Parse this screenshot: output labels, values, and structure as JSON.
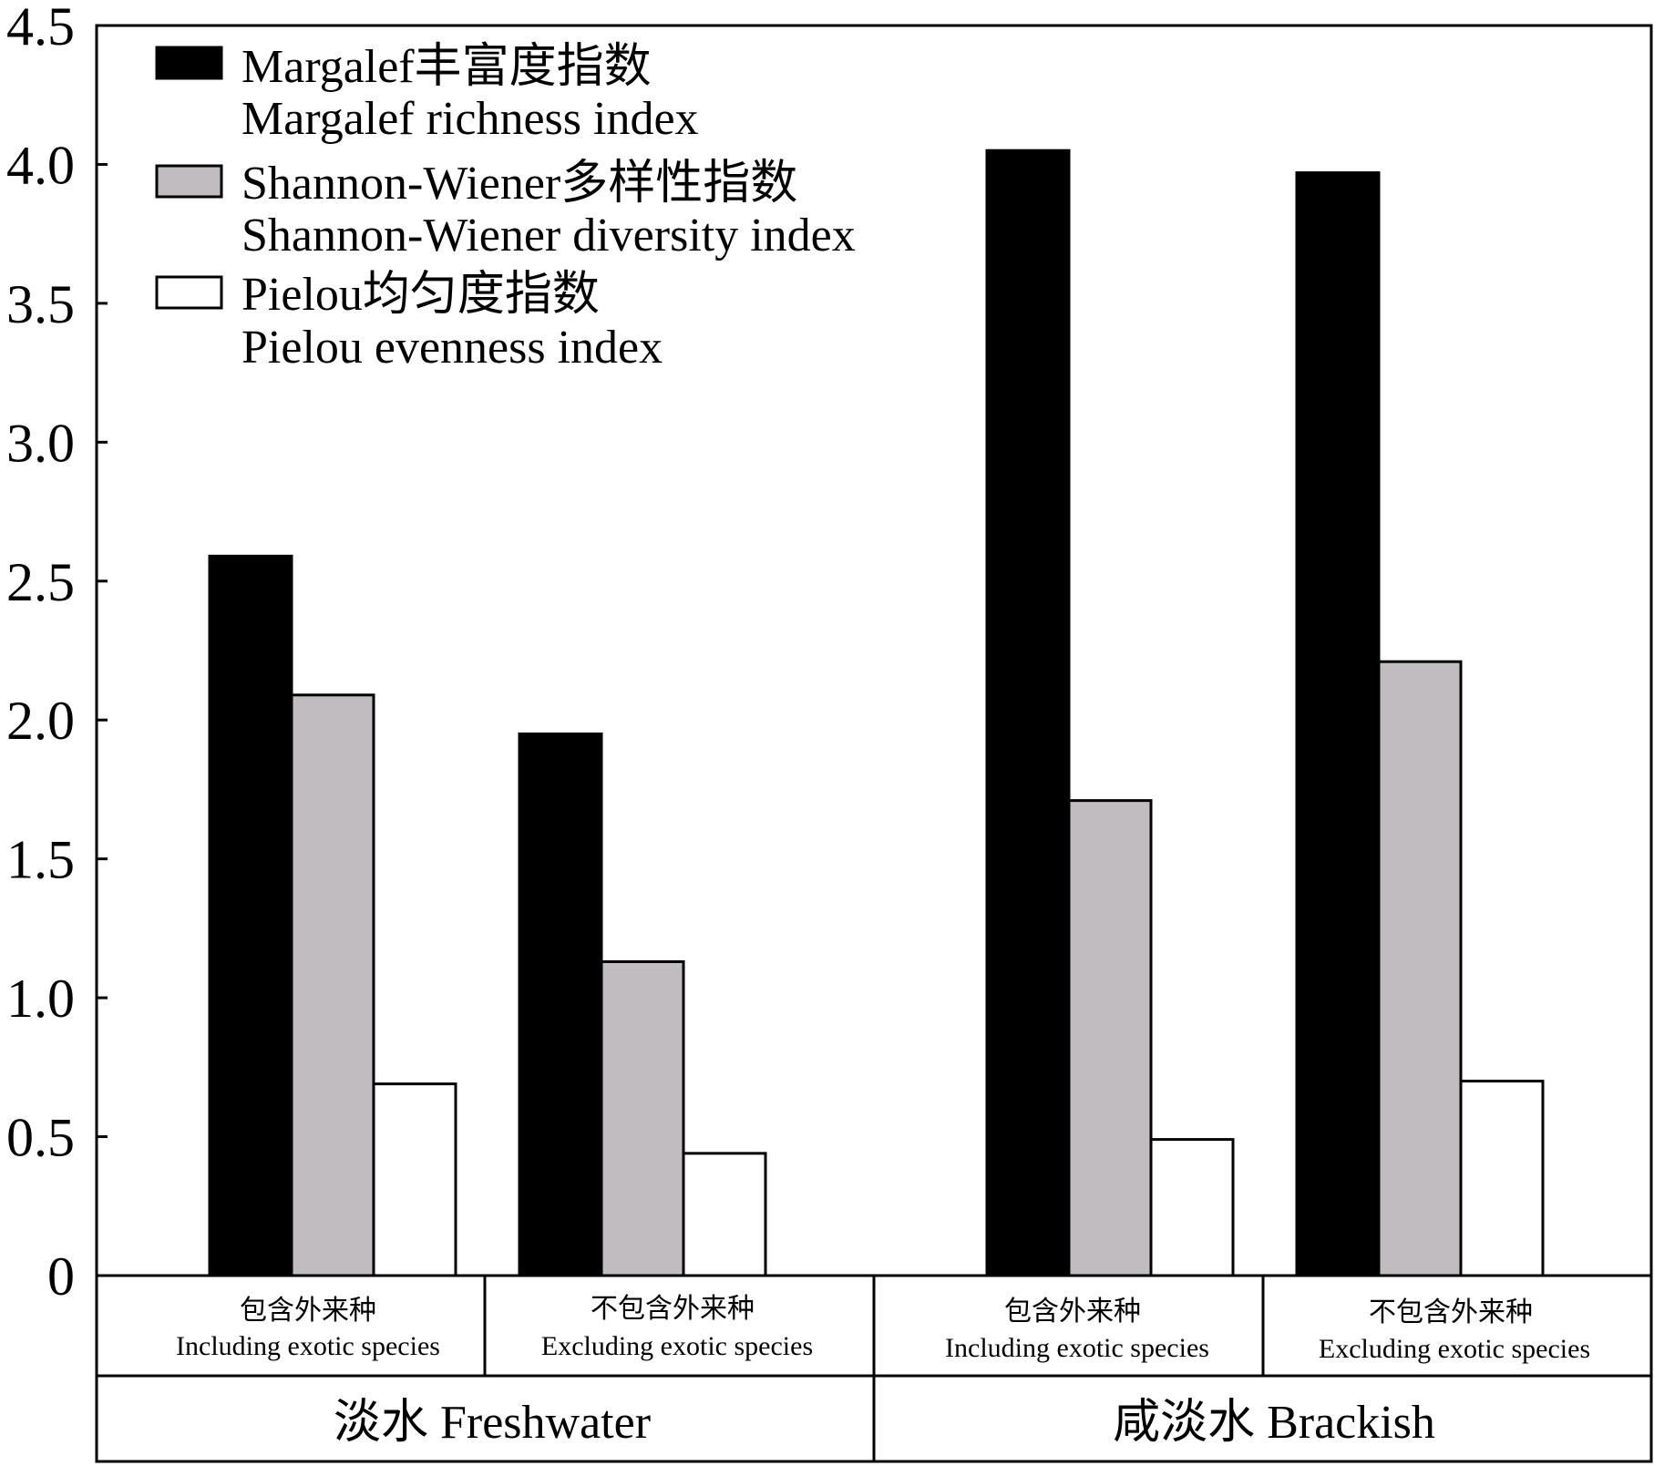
{
  "chart_data": {
    "type": "bar",
    "ylim": [
      0,
      4.5
    ],
    "yticks": [
      "0",
      "0.5",
      "1.0",
      "1.5",
      "2.0",
      "2.5",
      "3.0",
      "3.5",
      "4.0",
      "4.5"
    ],
    "categories": [
      {
        "cn": "包含外来种",
        "en": "Including exotic species"
      },
      {
        "cn": "不包含外来种",
        "en": "Excluding exotic species"
      },
      {
        "cn": "包含外来种",
        "en": "Including exotic species"
      },
      {
        "cn": "不包含外来种",
        "en": "Excluding exotic species"
      }
    ],
    "groups": [
      {
        "label": "淡水 Freshwater"
      },
      {
        "label": "咸淡水 Brackish"
      }
    ],
    "series": [
      {
        "name": "Margalef丰富度指数",
        "name_en": "Margalef richness index",
        "color": "#000000",
        "values": [
          2.59,
          1.95,
          4.05,
          3.97
        ]
      },
      {
        "name": "Shannon-Wiener多样性指数",
        "name_en": "Shannon-Wiener diversity index",
        "color": "#c0bcc0",
        "values": [
          2.09,
          1.13,
          1.71,
          2.21
        ]
      },
      {
        "name": "Pielou均匀度指数",
        "name_en": "Pielou evenness index",
        "color": "#ffffff",
        "values": [
          0.69,
          0.44,
          0.49,
          0.7
        ]
      }
    ],
    "legend": "top-left",
    "grid": false
  }
}
